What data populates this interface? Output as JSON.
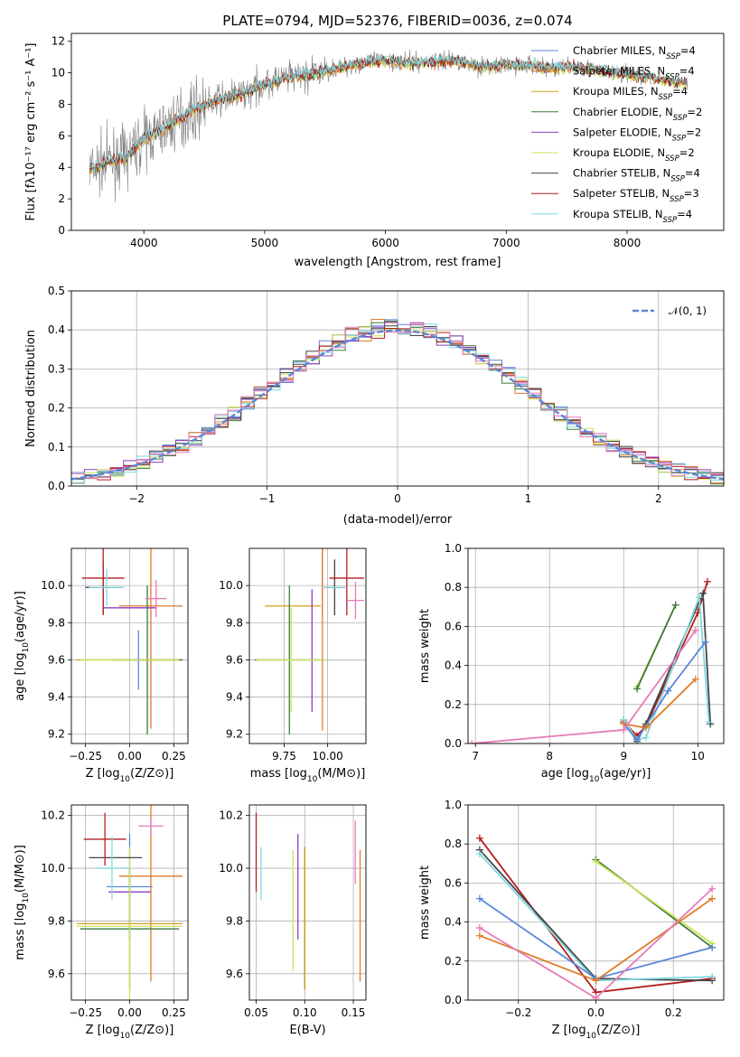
{
  "colors": {
    "Chabrier MILES": "#5b87d9",
    "Salpeter MILES": "#e07b28",
    "Kroupa MILES": "#d4a017",
    "Chabrier ELODIE": "#3f7a3f",
    "Salpeter ELODIE": "#8a3fbf",
    "Kroupa ELODIE": "#cde35a",
    "Chabrier STELIB": "#444444",
    "Salpeter STELIB": "#b41e1e",
    "Kroupa STELIB": "#82d8e0",
    "Pink": "#e67ab8",
    "Data": "#7f7f7f",
    "Gauss": "#5b87d9"
  },
  "chart_data": [
    {
      "id": "spectrum",
      "type": "line",
      "title": "PLATE=0794, MJD=52376, FIBERID=0036, z=0.074",
      "xlabel": "wavelength [Angstrom, rest frame]",
      "ylabel": "Flux [fλ10⁻¹⁷ erg cm⁻² s⁻¹ A⁻¹]",
      "xlim": [
        3400,
        8800
      ],
      "ylim": [
        0,
        12.5
      ],
      "xticks": [
        4000,
        5000,
        6000,
        7000,
        8000
      ],
      "yticks": [
        0,
        2,
        4,
        6,
        8,
        10,
        12
      ],
      "continuum": [
        [
          3550,
          3.8
        ],
        [
          3700,
          4.4
        ],
        [
          3850,
          4.6
        ],
        [
          4000,
          5.8
        ],
        [
          4200,
          6.6
        ],
        [
          4400,
          7.6
        ],
        [
          4600,
          8.2
        ],
        [
          4800,
          8.6
        ],
        [
          5000,
          9.3
        ],
        [
          5200,
          9.7
        ],
        [
          5400,
          9.9
        ],
        [
          5600,
          10.3
        ],
        [
          5800,
          10.6
        ],
        [
          6000,
          10.8
        ],
        [
          6200,
          10.6
        ],
        [
          6400,
          10.7
        ],
        [
          6600,
          10.8
        ],
        [
          6800,
          10.4
        ],
        [
          7000,
          10.5
        ],
        [
          7200,
          10.5
        ],
        [
          7400,
          10.3
        ],
        [
          7600,
          10.4
        ],
        [
          7800,
          10.1
        ],
        [
          8000,
          9.9
        ],
        [
          8200,
          9.7
        ],
        [
          8400,
          9.4
        ],
        [
          8500,
          9.4
        ]
      ],
      "legend": [
        {
          "main": "Chabrier MILES, N",
          "sub": "SSP",
          "tail": "=4"
        },
        {
          "main": "Salpeter MILES, N",
          "sub": "SSP",
          "tail": "=4"
        },
        {
          "main": "Kroupa MILES, N",
          "sub": "SSP",
          "tail": "=4"
        },
        {
          "main": "Chabrier ELODIE, N",
          "sub": "SSP",
          "tail": "=2"
        },
        {
          "main": "Salpeter ELODIE, N",
          "sub": "SSP",
          "tail": "=2"
        },
        {
          "main": "Kroupa ELODIE, N",
          "sub": "SSP",
          "tail": "=2"
        },
        {
          "main": "Chabrier STELIB, N",
          "sub": "SSP",
          "tail": "=4"
        },
        {
          "main": "Salpeter STELIB, N",
          "sub": "SSP",
          "tail": "=3"
        },
        {
          "main": "Kroupa STELIB, N",
          "sub": "SSP",
          "tail": "=4"
        }
      ]
    },
    {
      "id": "residuals",
      "type": "line",
      "xlabel": "(data-model)/error",
      "ylabel": "Normed distribution",
      "xlim": [
        -2.5,
        2.5
      ],
      "ylim": [
        0,
        0.5
      ],
      "xticks": [
        -2,
        -1,
        0,
        1,
        2
      ],
      "yticks": [
        0.0,
        0.1,
        0.2,
        0.3,
        0.4,
        0.5
      ],
      "bin_width": 0.1,
      "legend": "𝒩(0, 1)"
    },
    {
      "id": "age_vs_Z",
      "type": "scatter",
      "xlabel": "Z [log₁₀(Z/Z⊙)]",
      "ylabel": "age  [log₁₀(age/yr)]",
      "xlim": [
        -0.33,
        0.33
      ],
      "ylim": [
        9.15,
        10.2
      ],
      "xticks": [
        -0.25,
        0.0,
        0.25
      ],
      "yticks": [
        9.2,
        9.4,
        9.6,
        9.8,
        10.0
      ],
      "points": [
        {
          "model": "Chabrier MILES",
          "x": 0.05,
          "y": 9.6,
          "xerr": 0.08,
          "yerr": 0.16
        },
        {
          "model": "Salpeter MILES",
          "x": 0.12,
          "y": 9.89,
          "xerr": 0.18,
          "yerr": 0.66
        },
        {
          "model": "Kroupa MILES",
          "x": 0.0,
          "y": 9.6,
          "xerr": 0.3,
          "yerr": 0.0
        },
        {
          "model": "Chabrier ELODIE",
          "x": 0.1,
          "y": 9.6,
          "xerr": 0.2,
          "yerr": 0.4
        },
        {
          "model": "Salpeter ELODIE",
          "x": 0.0,
          "y": 9.88,
          "xerr": 0.15,
          "yerr": 0.0
        },
        {
          "model": "Kroupa ELODIE",
          "x": 0.0,
          "y": 9.6,
          "xerr": 0.28,
          "yerr": 0.0
        },
        {
          "model": "Chabrier STELIB",
          "x": -0.15,
          "y": 9.99,
          "xerr": 0.1,
          "yerr": 0.14
        },
        {
          "model": "Salpeter STELIB",
          "x": -0.15,
          "y": 10.04,
          "xerr": 0.12,
          "yerr": 0.2
        },
        {
          "model": "Kroupa STELIB",
          "x": -0.13,
          "y": 9.99,
          "xerr": 0.1,
          "yerr": 0.1
        },
        {
          "model": "Pink",
          "x": 0.15,
          "y": 9.93,
          "xerr": 0.06,
          "yerr": 0.1
        }
      ]
    },
    {
      "id": "age_vs_mass",
      "type": "scatter",
      "xlabel": "mass [log₁₀(M/M⊙)]",
      "xlim": [
        9.55,
        10.22
      ],
      "ylim": [
        9.15,
        10.2
      ],
      "xticks": [
        9.75,
        10.0
      ],
      "yticks": [
        9.2,
        9.4,
        9.6,
        9.8,
        10.0
      ],
      "points": [
        {
          "model": "Chabrier MILES",
          "x": 9.97,
          "y": 10.04,
          "xerr": 0.0,
          "yerr": 0.2
        },
        {
          "model": "Salpeter MILES",
          "x": 9.97,
          "y": 9.72,
          "xerr": 0.0,
          "yerr": 0.5
        },
        {
          "model": "Kroupa MILES",
          "x": 9.8,
          "y": 9.89,
          "xerr": 0.16,
          "yerr": 0.0
        },
        {
          "model": "Chabrier ELODIE",
          "x": 9.78,
          "y": 9.6,
          "xerr": 0.2,
          "yerr": 0.4
        },
        {
          "model": "Salpeter ELODIE",
          "x": 9.91,
          "y": 9.65,
          "xerr": 0.0,
          "yerr": 0.33
        },
        {
          "model": "Kroupa ELODIE",
          "x": 9.79,
          "y": 9.6,
          "xerr": 0.2,
          "yerr": 0.28
        },
        {
          "model": "Chabrier STELIB",
          "x": 10.04,
          "y": 9.99,
          "xerr": 0.06,
          "yerr": 0.15
        },
        {
          "model": "Salpeter STELIB",
          "x": 10.11,
          "y": 10.04,
          "xerr": 0.1,
          "yerr": 0.2
        },
        {
          "model": "Kroupa STELIB",
          "x": 10.04,
          "y": 9.99,
          "xerr": 0.06,
          "yerr": 0.0
        },
        {
          "model": "Pink",
          "x": 10.16,
          "y": 9.92,
          "xerr": 0.05,
          "yerr": 0.1
        }
      ]
    },
    {
      "id": "weight_vs_age",
      "type": "line",
      "xlabel": "age  [log₁₀(age/yr)]",
      "ylabel": "mass weight",
      "xlim": [
        6.9,
        10.35
      ],
      "ylim": [
        0,
        1.0
      ],
      "xticks": [
        7,
        8,
        9,
        10
      ],
      "yticks": [
        0.0,
        0.2,
        0.4,
        0.6,
        0.8,
        1.0
      ],
      "series": [
        {
          "model": "Kroupa ELODIE",
          "x": [
            9.18,
            9.7
          ],
          "y": [
            0.29,
            0.71
          ]
        },
        {
          "model": "Chabrier ELODIE",
          "x": [
            9.18,
            9.7
          ],
          "y": [
            0.28,
            0.71
          ]
        },
        {
          "model": "Salpeter STELIB",
          "x": [
            9.0,
            9.18,
            9.3,
            10.0,
            10.13
          ],
          "y": [
            0.11,
            0.04,
            0.09,
            0.67,
            0.83
          ]
        },
        {
          "model": "Chabrier STELIB",
          "x": [
            9.0,
            9.18,
            9.3,
            10.07,
            10.17
          ],
          "y": [
            0.12,
            0.01,
            0.1,
            0.77,
            0.1
          ]
        },
        {
          "model": "Kroupa STELIB",
          "x": [
            9.0,
            9.18,
            9.3,
            10.02,
            10.15
          ],
          "y": [
            0.12,
            0.02,
            0.03,
            0.75,
            0.11
          ]
        },
        {
          "model": "Chabrier MILES",
          "x": [
            9.0,
            9.18,
            9.6,
            10.1
          ],
          "y": [
            0.1,
            0.02,
            0.27,
            0.52
          ]
        },
        {
          "model": "Salpeter MILES",
          "x": [
            9.0,
            9.3,
            9.97
          ],
          "y": [
            0.1,
            0.08,
            0.33
          ]
        },
        {
          "model": "Pink",
          "x": [
            6.95,
            9.0,
            9.97
          ],
          "y": [
            0.0,
            0.07,
            0.58
          ]
        }
      ]
    },
    {
      "id": "mass_vs_Z",
      "type": "scatter",
      "xlabel": "Z [log₁₀(Z/Z⊙)]",
      "ylabel": "mass [log₁₀(M/M⊙)]",
      "xlim": [
        -0.33,
        0.33
      ],
      "ylim": [
        9.5,
        10.24
      ],
      "xticks": [
        -0.25,
        0.0,
        0.25
      ],
      "yticks": [
        9.6,
        9.8,
        10.0,
        10.2
      ],
      "points": [
        {
          "model": "Chabrier MILES",
          "x": 0.0,
          "y": 9.93,
          "xerr": 0.13,
          "yerr": 0.2
        },
        {
          "model": "Salpeter MILES",
          "x": 0.12,
          "y": 9.97,
          "xerr": 0.18,
          "yerr": 0.4
        },
        {
          "model": "Kroupa MILES",
          "x": 0.0,
          "y": 9.79,
          "xerr": 0.3,
          "yerr": 0.0
        },
        {
          "model": "Chabrier ELODIE",
          "x": 0.0,
          "y": 9.77,
          "xerr": 0.28,
          "yerr": 0.23
        },
        {
          "model": "Salpeter ELODIE",
          "x": 0.0,
          "y": 9.91,
          "xerr": 0.12,
          "yerr": 0.0
        },
        {
          "model": "Kroupa ELODIE",
          "x": 0.0,
          "y": 9.78,
          "xerr": 0.3,
          "yerr": 0.3
        },
        {
          "model": "Chabrier STELIB",
          "x": -0.08,
          "y": 10.04,
          "xerr": 0.15,
          "yerr": 0.0
        },
        {
          "model": "Salpeter STELIB",
          "x": -0.14,
          "y": 10.11,
          "xerr": 0.12,
          "yerr": 0.1
        },
        {
          "model": "Kroupa STELIB",
          "x": -0.1,
          "y": 10.0,
          "xerr": 0.1,
          "yerr": 0.12
        },
        {
          "model": "Pink",
          "x": 0.12,
          "y": 10.16,
          "xerr": 0.07,
          "yerr": 0.03
        }
      ]
    },
    {
      "id": "mass_vs_ebv",
      "type": "scatter",
      "xlabel": "E(B-V)",
      "xlim": [
        0.043,
        0.163
      ],
      "ylim": [
        9.5,
        10.24
      ],
      "xticks": [
        0.05,
        0.1,
        0.15
      ],
      "yticks": [
        9.6,
        9.8,
        10.0,
        10.2
      ],
      "points": [
        {
          "model": "Salpeter STELIB",
          "x": 0.05,
          "y": 10.06,
          "yerr": 0.15
        },
        {
          "model": "Kroupa STELIB",
          "x": 0.055,
          "y": 9.98,
          "yerr": 0.1
        },
        {
          "model": "Kroupa ELODIE",
          "x": 0.088,
          "y": 9.84,
          "yerr": 0.23
        },
        {
          "model": "Salpeter ELODIE",
          "x": 0.093,
          "y": 9.93,
          "yerr": 0.2
        },
        {
          "model": "Chabrier ELODIE",
          "x": 0.1,
          "y": 9.81,
          "yerr": 0.27
        },
        {
          "model": "Kroupa MILES",
          "x": 0.1,
          "y": 9.81,
          "yerr": 0.27
        },
        {
          "model": "Pink",
          "x": 0.152,
          "y": 10.06,
          "yerr": 0.12
        },
        {
          "model": "Salpeter MILES",
          "x": 0.157,
          "y": 9.82,
          "yerr": 0.25
        }
      ]
    },
    {
      "id": "weight_vs_Z",
      "type": "line",
      "xlabel": "Z [log₁₀(Z/Z⊙)]",
      "ylabel": "mass weight",
      "xlim": [
        -0.33,
        0.33
      ],
      "ylim": [
        0,
        1.0
      ],
      "xticks": [
        -0.2,
        0.0,
        0.2
      ],
      "yticks": [
        0.0,
        0.2,
        0.4,
        0.6,
        0.8,
        1.0
      ],
      "series": [
        {
          "model": "Chabrier ELODIE",
          "x": [
            0.0,
            0.3
          ],
          "y": [
            0.72,
            0.27
          ]
        },
        {
          "model": "Kroupa ELODIE",
          "x": [
            0.0,
            0.3
          ],
          "y": [
            0.71,
            0.29
          ]
        },
        {
          "model": "Salpeter STELIB",
          "x": [
            -0.3,
            0.0,
            0.3
          ],
          "y": [
            0.83,
            0.04,
            0.11
          ]
        },
        {
          "model": "Chabrier STELIB",
          "x": [
            -0.3,
            0.0,
            0.3
          ],
          "y": [
            0.77,
            0.11,
            0.1
          ]
        },
        {
          "model": "Kroupa STELIB",
          "x": [
            -0.3,
            0.0,
            0.3
          ],
          "y": [
            0.75,
            0.1,
            0.12
          ]
        },
        {
          "model": "Chabrier MILES",
          "x": [
            -0.3,
            0.0,
            0.3
          ],
          "y": [
            0.52,
            0.11,
            0.27
          ]
        },
        {
          "model": "Salpeter MILES",
          "x": [
            -0.3,
            0.0,
            0.3
          ],
          "y": [
            0.33,
            0.1,
            0.52
          ]
        },
        {
          "model": "Pink",
          "x": [
            -0.3,
            0.0,
            0.3
          ],
          "y": [
            0.37,
            0.01,
            0.57
          ]
        }
      ]
    }
  ]
}
